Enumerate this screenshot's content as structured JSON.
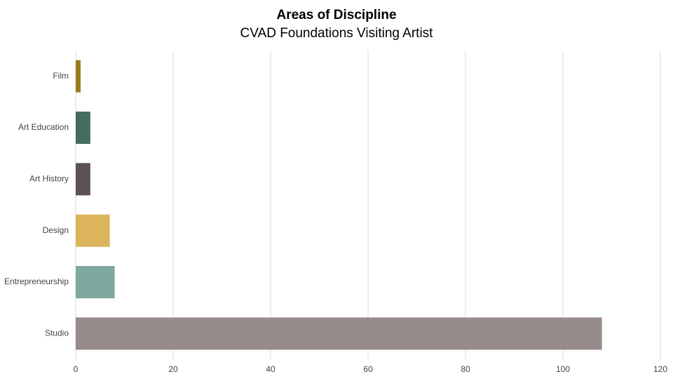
{
  "chart_data": {
    "type": "bar",
    "orientation": "horizontal",
    "title": "Areas of Discipline",
    "subtitle": "CVAD Foundations Visiting Artist",
    "categories": [
      "Film",
      "Art Education",
      "Art History",
      "Design",
      "Entrepreneurship",
      "Studio"
    ],
    "values": [
      1,
      3,
      3,
      7,
      8,
      108
    ],
    "colors": [
      "#9a7b1c",
      "#466b60",
      "#5c5253",
      "#dcb45c",
      "#7ea99e",
      "#978c8b"
    ],
    "xlim": [
      0,
      120
    ],
    "xticks": [
      0,
      20,
      40,
      60,
      80,
      100,
      120
    ],
    "grid": true
  }
}
